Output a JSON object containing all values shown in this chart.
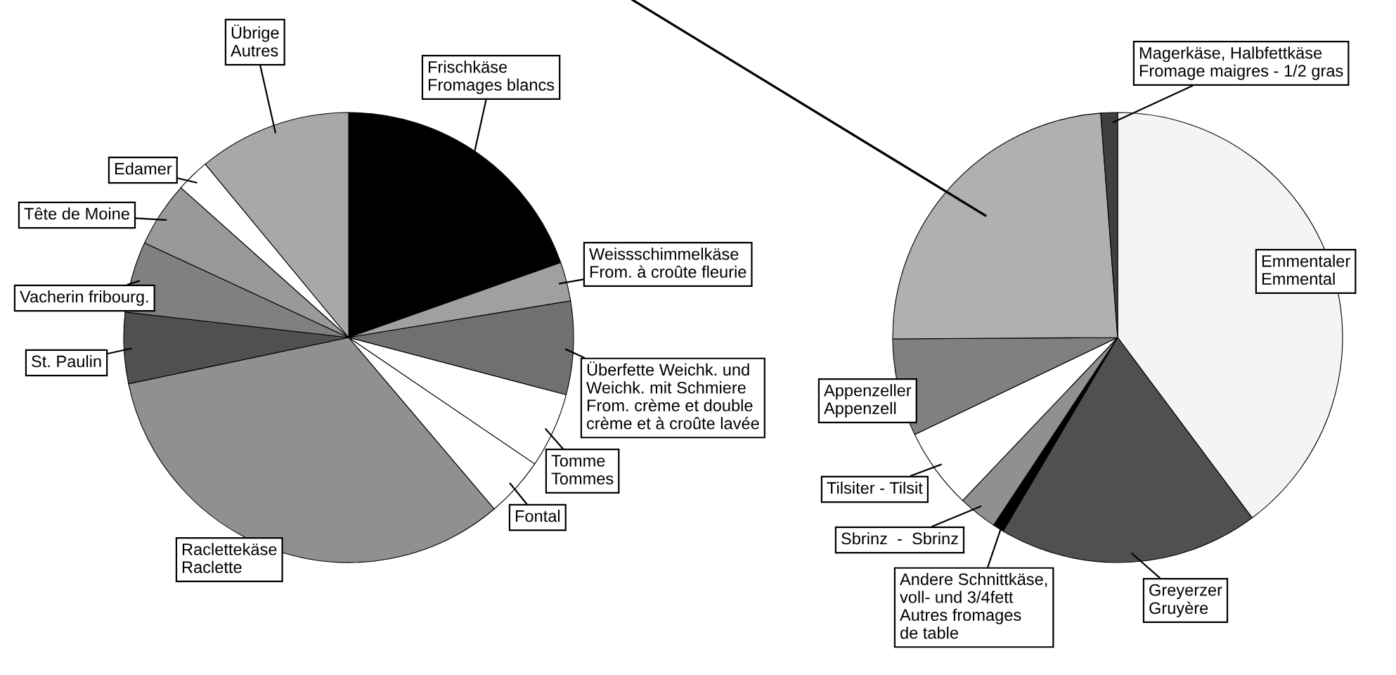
{
  "chart_data": [
    {
      "type": "pie",
      "categories": [
        "Frischkäse\nFromages blancs",
        "Weissschimmelkäse\nFrom. à croûte fleurie",
        "Überfette Weichk. und\nWeichk. mit Schmiere\nFrom. crème et double\ncrème et à croûte lavée",
        "Tomme\nTommes",
        "Fontal",
        "Raclettekäse\nRaclette",
        "St. Paulin",
        "Vacherin fribourg.",
        "Tête de Moine",
        "Edamer",
        "Übrige\nAutres"
      ],
      "values": [
        19.6,
        2.8,
        6.7,
        5.4,
        4.3,
        32.9,
        5.1,
        5.1,
        4.7,
        2.4,
        11
      ],
      "colors": [
        "#000000",
        "#a0a0a0",
        "#707070",
        "#ffffff",
        "#ffffff",
        "#909090",
        "#505050",
        "#808080",
        "#999999",
        "#ffffff",
        "#a8a8a8"
      ]
    },
    {
      "type": "pie",
      "categories": [
        "Emmentaler\nEmmental",
        "Greyerzer\nGruyère",
        "Andere Schnittkäse,\nvoll- und 3/4fett\nAutres fromages\nde table",
        "Sbrinz  -  Sbrinz",
        "Tilsiter - Tilsit",
        "Appenzeller\nAppenzell",
        null,
        "Magerkäse, Halbfettkäse\nFromage maigres - 1/2 gras"
      ],
      "values": [
        39.8,
        18.7,
        0.8,
        2.8,
        5.8,
        7,
        23.9,
        1.2
      ],
      "colors": [
        "#f4f4f4",
        "#505050",
        "#000000",
        "#909090",
        "#ffffff",
        "#808080",
        "#b0b0b0",
        "#404040"
      ]
    }
  ]
}
